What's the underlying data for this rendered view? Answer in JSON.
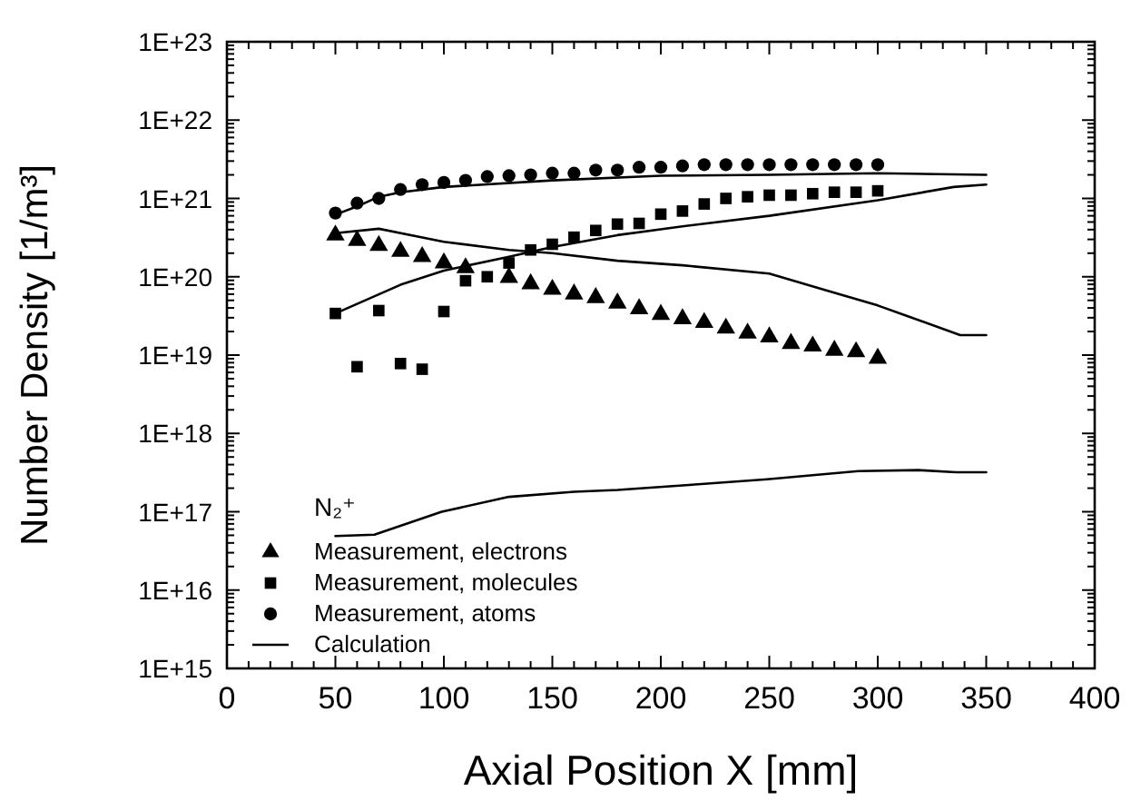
{
  "chart_data": {
    "type": "scatter",
    "xlabel": "Axial Position X [mm]",
    "ylabel": "Number Density [1/m³]",
    "legend_title": "N₂⁺",
    "legend": "bottom left",
    "log": "y",
    "grid": false,
    "xlim": [
      0,
      400
    ],
    "xticks": [
      0,
      50,
      100,
      150,
      200,
      250,
      300,
      350,
      400
    ],
    "ylim": [
      1000000000000000.0,
      1e+23
    ],
    "yticks": [
      {
        "value": 1000000000000000.0,
        "label": "1E+15"
      },
      {
        "value": 1e+16,
        "label": "1E+16"
      },
      {
        "value": 1e+17,
        "label": "1E+17"
      },
      {
        "value": 1e+18,
        "label": "1E+18"
      },
      {
        "value": 1e+19,
        "label": "1E+19"
      },
      {
        "value": 1e+20,
        "label": "1E+20"
      },
      {
        "value": 1e+21,
        "label": "1E+21"
      },
      {
        "value": 1e+22,
        "label": "1E+22"
      },
      {
        "value": 1e+23,
        "label": "1E+23"
      }
    ],
    "series": [
      {
        "name": "Measurement, electrons",
        "marker": "triangle",
        "color": "#000000",
        "x": [
          50,
          60,
          70,
          80,
          90,
          100,
          110,
          120,
          130,
          140,
          150,
          160,
          170,
          180,
          190,
          200,
          210,
          220,
          230,
          240,
          250,
          260,
          270,
          280,
          290,
          300
        ],
        "values": [
          3.4e+20,
          2.9e+20,
          2.5e+20,
          2.1e+20,
          1.8e+20,
          1.5e+20,
          1.3e+20,
          null,
          9.8e+19,
          8.1e+19,
          6.9e+19,
          6e+19,
          5.4e+19,
          4.6e+19,
          3.9e+19,
          3.3e+19,
          2.9e+19,
          2.6e+19,
          2.2e+19,
          1.9e+19,
          1.7e+19,
          1.4e+19,
          1.3e+19,
          1.15e+19,
          1.1e+19,
          9.1e+18
        ]
      },
      {
        "name": "Measurement, molecules",
        "marker": "square",
        "color": "#000000",
        "x": [
          50,
          60,
          70,
          80,
          90,
          100,
          110,
          120,
          130,
          140,
          150,
          160,
          170,
          180,
          190,
          200,
          210,
          220,
          230,
          240,
          250,
          260,
          270,
          280,
          290,
          300
        ],
        "values": [
          3.4e+19,
          7.1e+18,
          3.7e+19,
          7.8e+18,
          6.6e+18,
          3.6e+19,
          8.9e+19,
          1e+20,
          1.5e+20,
          2.2e+20,
          2.6e+20,
          3.2e+20,
          3.9e+20,
          4.7e+20,
          4.8e+20,
          6.3e+20,
          6.9e+20,
          8.5e+20,
          1e+21,
          1.05e+21,
          1.1e+21,
          1.1e+21,
          1.15e+21,
          1.2e+21,
          1.2e+21,
          1.25e+21
        ]
      },
      {
        "name": "Measurement, atoms",
        "marker": "circle",
        "color": "#000000",
        "x": [
          50,
          60,
          70,
          80,
          90,
          100,
          110,
          120,
          130,
          140,
          150,
          160,
          170,
          180,
          190,
          200,
          210,
          220,
          230,
          240,
          250,
          260,
          270,
          280,
          290,
          300
        ],
        "values": [
          6.5e+20,
          8.7e+20,
          1e+21,
          1.3e+21,
          1.5e+21,
          1.6e+21,
          1.7e+21,
          1.9e+21,
          1.95e+21,
          2e+21,
          2.1e+21,
          2.1e+21,
          2.3e+21,
          2.3e+21,
          2.5e+21,
          2.5e+21,
          2.6e+21,
          2.7e+21,
          2.7e+21,
          2.7e+21,
          2.7e+21,
          2.7e+21,
          2.7e+21,
          2.7e+21,
          2.7e+21,
          2.7e+21
        ]
      },
      {
        "name": "Calculation",
        "type": "line",
        "marker": "none",
        "line_style": "solid",
        "color": "#000000",
        "x": [
          50,
          60,
          70,
          80,
          100,
          150,
          200,
          250,
          300,
          350
        ],
        "values": [
          6.2e+20,
          7.9e+20,
          1.05e+21,
          1.2e+21,
          1.4e+21,
          1.7e+21,
          1.95e+21,
          2e+21,
          2.1e+21,
          2e+21
        ]
      },
      {
        "type": "line",
        "marker": "none",
        "line_style": "solid",
        "color": "#000000",
        "x": [
          50,
          80,
          100,
          130,
          150,
          180,
          210,
          250,
          300,
          335,
          350
        ],
        "values": [
          3.4e+19,
          7.9e+19,
          1.2e+20,
          1.8e+20,
          2.4e+20,
          3.4e+20,
          4.4e+20,
          6e+20,
          9.5e+20,
          1.4e+21,
          1.5e+21
        ]
      },
      {
        "type": "line",
        "marker": "none",
        "line_style": "solid",
        "color": "#000000",
        "x": [
          50,
          70,
          100,
          130,
          150,
          180,
          210,
          250,
          277,
          300,
          313,
          338,
          350
        ],
        "values": [
          3.6e+20,
          4.1e+20,
          2.8e+20,
          2.2e+20,
          2e+20,
          1.6e+20,
          1.4e+20,
          1.1e+20,
          6.6e+19,
          4.3e+19,
          3.2e+19,
          1.8e+19,
          1.8e+19
        ]
      },
      {
        "type": "line",
        "marker": "none",
        "line_style": "solid",
        "color": "#000000",
        "x": [
          50,
          68,
          99,
          130,
          160,
          180,
          213,
          249,
          291,
          319,
          336,
          350
        ],
        "values": [
          4.9e+16,
          5.1e+16,
          1e+17,
          1.55e+17,
          1.8e+17,
          1.9e+17,
          2.2e+17,
          2.6e+17,
          3.3e+17,
          3.4e+17,
          3.2e+17,
          3.2e+17
        ]
      }
    ]
  }
}
